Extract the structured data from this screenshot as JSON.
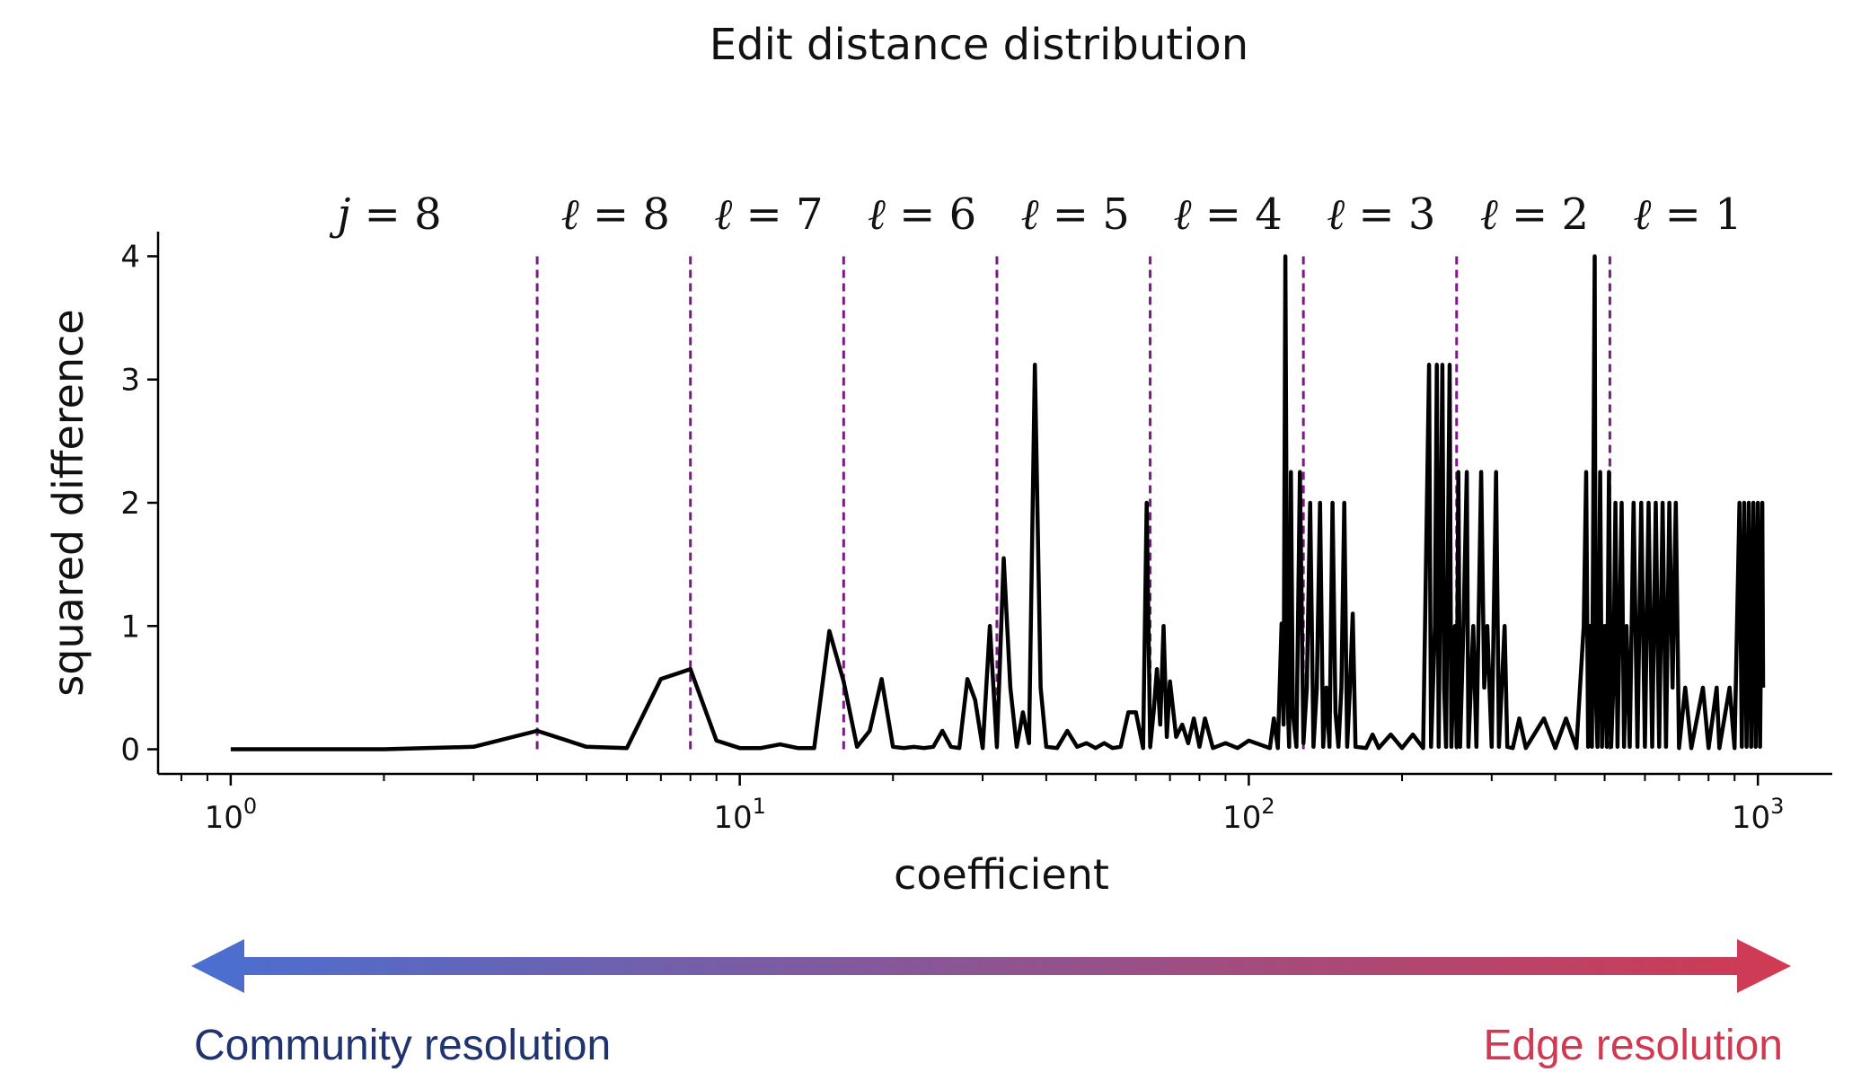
{
  "chart_data": {
    "type": "line",
    "title": "Edit distance distribution",
    "xlabel": "coefficient",
    "ylabel": "squared difference",
    "x_scale": "log",
    "xlim": [
      0.72,
      1400
    ],
    "ylim": [
      -0.2,
      4.2
    ],
    "grid": false,
    "x_ticks": [
      {
        "value": 1,
        "base": "10",
        "exp": "0"
      },
      {
        "value": 10,
        "base": "10",
        "exp": "1"
      },
      {
        "value": 100,
        "base": "10",
        "exp": "2"
      },
      {
        "value": 1000,
        "base": "10",
        "exp": "3"
      }
    ],
    "y_ticks": [
      {
        "value": 0,
        "label": "0"
      },
      {
        "value": 1,
        "label": "1"
      },
      {
        "value": 2,
        "label": "2"
      },
      {
        "value": 3,
        "label": "3"
      },
      {
        "value": 4,
        "label": "4"
      }
    ],
    "dividers": [
      4,
      8,
      16,
      32,
      64,
      128,
      256,
      512
    ],
    "divider_color": "#7b1a86",
    "line_color": "#000000",
    "region_labels": [
      {
        "var": "j",
        "value": "8",
        "x": 2.05
      },
      {
        "var": "ℓ",
        "value": "8",
        "x": 5.7
      },
      {
        "var": "ℓ",
        "value": "7",
        "x": 11.4
      },
      {
        "var": "ℓ",
        "value": "6",
        "x": 22.8
      },
      {
        "var": "ℓ",
        "value": "5",
        "x": 45.6
      },
      {
        "var": "ℓ",
        "value": "4",
        "x": 91
      },
      {
        "var": "ℓ",
        "value": "3",
        "x": 182
      },
      {
        "var": "ℓ",
        "value": "2",
        "x": 364
      },
      {
        "var": "ℓ",
        "value": "1",
        "x": 728
      }
    ],
    "series": [
      {
        "points": [
          [
            1,
            0
          ],
          [
            2,
            0
          ],
          [
            3,
            0.02
          ],
          [
            4,
            0.15
          ],
          [
            5,
            0.02
          ],
          [
            6,
            0.01
          ],
          [
            7,
            0.57
          ],
          [
            8,
            0.65
          ],
          [
            9,
            0.07
          ],
          [
            10,
            0.01
          ],
          [
            11,
            0.01
          ],
          [
            12,
            0.04
          ],
          [
            13,
            0.01
          ],
          [
            14,
            0.01
          ],
          [
            15,
            0.96
          ],
          [
            16,
            0.55
          ],
          [
            17,
            0.02
          ],
          [
            18,
            0.15
          ],
          [
            19,
            0.57
          ],
          [
            20,
            0.02
          ],
          [
            21,
            0.01
          ],
          [
            22,
            0.02
          ],
          [
            23,
            0.01
          ],
          [
            24,
            0.02
          ],
          [
            25,
            0.15
          ],
          [
            26,
            0.02
          ],
          [
            27,
            0.01
          ],
          [
            28,
            0.57
          ],
          [
            29,
            0.4
          ],
          [
            30,
            0.01
          ],
          [
            31,
            1.0
          ],
          [
            32,
            0.02
          ],
          [
            33,
            1.55
          ],
          [
            34,
            0.5
          ],
          [
            35,
            0.02
          ],
          [
            36,
            0.3
          ],
          [
            37,
            0.05
          ],
          [
            38,
            3.12
          ],
          [
            39,
            0.5
          ],
          [
            40,
            0.02
          ],
          [
            42,
            0.01
          ],
          [
            44,
            0.15
          ],
          [
            46,
            0.02
          ],
          [
            48,
            0.05
          ],
          [
            50,
            0.01
          ],
          [
            52,
            0.05
          ],
          [
            54,
            0.01
          ],
          [
            56,
            0.02
          ],
          [
            58,
            0.3
          ],
          [
            60,
            0.3
          ],
          [
            62,
            0.01
          ],
          [
            63,
            2.0
          ],
          [
            64,
            0.02
          ],
          [
            65,
            0.3
          ],
          [
            66,
            0.65
          ],
          [
            67,
            0.2
          ],
          [
            68,
            1.0
          ],
          [
            69,
            0.1
          ],
          [
            70,
            0.55
          ],
          [
            72,
            0.1
          ],
          [
            74,
            0.2
          ],
          [
            76,
            0.05
          ],
          [
            78,
            0.25
          ],
          [
            80,
            0.02
          ],
          [
            82,
            0.25
          ],
          [
            85,
            0.01
          ],
          [
            90,
            0.05
          ],
          [
            95,
            0.01
          ],
          [
            100,
            0.07
          ],
          [
            110,
            0.01
          ],
          [
            112,
            0.25
          ],
          [
            114,
            0.01
          ],
          [
            116,
            1.02
          ],
          [
            117,
            0.2
          ],
          [
            118,
            4.0
          ],
          [
            119,
            0.5
          ],
          [
            120,
            0.02
          ],
          [
            121,
            2.25
          ],
          [
            122,
            0.3
          ],
          [
            124,
            0.02
          ],
          [
            126,
            2.25
          ],
          [
            128,
            0.05
          ],
          [
            130,
            0.5
          ],
          [
            132,
            2.0
          ],
          [
            134,
            0.02
          ],
          [
            136,
            0.5
          ],
          [
            138,
            2.0
          ],
          [
            140,
            0.02
          ],
          [
            142,
            0.5
          ],
          [
            144,
            0.02
          ],
          [
            146,
            2.0
          ],
          [
            148,
            0.3
          ],
          [
            150,
            0.02
          ],
          [
            152,
            0.5
          ],
          [
            154,
            2.0
          ],
          [
            156,
            0.02
          ],
          [
            158,
            0.5
          ],
          [
            160,
            1.1
          ],
          [
            162,
            0.02
          ],
          [
            170,
            0.01
          ],
          [
            175,
            0.12
          ],
          [
            180,
            0.01
          ],
          [
            190,
            0.12
          ],
          [
            200,
            0.01
          ],
          [
            210,
            0.12
          ],
          [
            220,
            0.01
          ],
          [
            226,
            3.12
          ],
          [
            228,
            0.02
          ],
          [
            232,
            1.0
          ],
          [
            234,
            3.12
          ],
          [
            236,
            0.02
          ],
          [
            240,
            3.12
          ],
          [
            242,
            0.5
          ],
          [
            244,
            0.02
          ],
          [
            248,
            3.12
          ],
          [
            250,
            0.02
          ],
          [
            254,
            1.0
          ],
          [
            256,
            0.02
          ],
          [
            258,
            2.25
          ],
          [
            260,
            0.02
          ],
          [
            264,
            1.0
          ],
          [
            268,
            2.25
          ],
          [
            270,
            0.02
          ],
          [
            276,
            1.0
          ],
          [
            280,
            0.02
          ],
          [
            286,
            2.25
          ],
          [
            290,
            0.5
          ],
          [
            294,
            1.0
          ],
          [
            300,
            0.02
          ],
          [
            306,
            2.25
          ],
          [
            310,
            0.02
          ],
          [
            318,
            1.0
          ],
          [
            322,
            0.02
          ],
          [
            330,
            0.01
          ],
          [
            340,
            0.25
          ],
          [
            350,
            0.01
          ],
          [
            380,
            0.25
          ],
          [
            400,
            0.01
          ],
          [
            420,
            0.25
          ],
          [
            440,
            0.01
          ],
          [
            455,
            1.0
          ],
          [
            460,
            2.25
          ],
          [
            464,
            0.02
          ],
          [
            468,
            1.0
          ],
          [
            472,
            0.02
          ],
          [
            478,
            4.0
          ],
          [
            480,
            0.5
          ],
          [
            484,
            0.02
          ],
          [
            490,
            2.25
          ],
          [
            494,
            0.02
          ],
          [
            500,
            1.0
          ],
          [
            505,
            0.02
          ],
          [
            510,
            2.25
          ],
          [
            515,
            0.02
          ],
          [
            520,
            0.5
          ],
          [
            525,
            2.0
          ],
          [
            530,
            0.02
          ],
          [
            540,
            2.0
          ],
          [
            546,
            0.02
          ],
          [
            552,
            1.0
          ],
          [
            560,
            0.02
          ],
          [
            570,
            2.0
          ],
          [
            580,
            0.02
          ],
          [
            590,
            2.0
          ],
          [
            600,
            0.02
          ],
          [
            610,
            2.0
          ],
          [
            620,
            0.02
          ],
          [
            630,
            2.0
          ],
          [
            640,
            0.02
          ],
          [
            650,
            2.0
          ],
          [
            660,
            0.02
          ],
          [
            670,
            2.0
          ],
          [
            680,
            0.5
          ],
          [
            690,
            2.0
          ],
          [
            700,
            0.01
          ],
          [
            720,
            0.5
          ],
          [
            740,
            0.01
          ],
          [
            780,
            0.5
          ],
          [
            800,
            0.01
          ],
          [
            830,
            0.5
          ],
          [
            840,
            0.01
          ],
          [
            880,
            0.5
          ],
          [
            900,
            0.01
          ],
          [
            920,
            2.0
          ],
          [
            930,
            0.02
          ],
          [
            940,
            2.0
          ],
          [
            950,
            0.02
          ],
          [
            960,
            2.0
          ],
          [
            970,
            0.02
          ],
          [
            980,
            2.0
          ],
          [
            990,
            0.02
          ],
          [
            1000,
            2.0
          ],
          [
            1010,
            0.02
          ],
          [
            1020,
            2.0
          ],
          [
            1024,
            0.5
          ]
        ]
      }
    ]
  },
  "resolution_bar": {
    "left_label": "Community resolution",
    "right_label": "Edge resolution",
    "left_color": "#4a6fd1",
    "right_color": "#d13a52",
    "left_text_color": "#1f3370",
    "right_text_color": "#cf3a52"
  }
}
